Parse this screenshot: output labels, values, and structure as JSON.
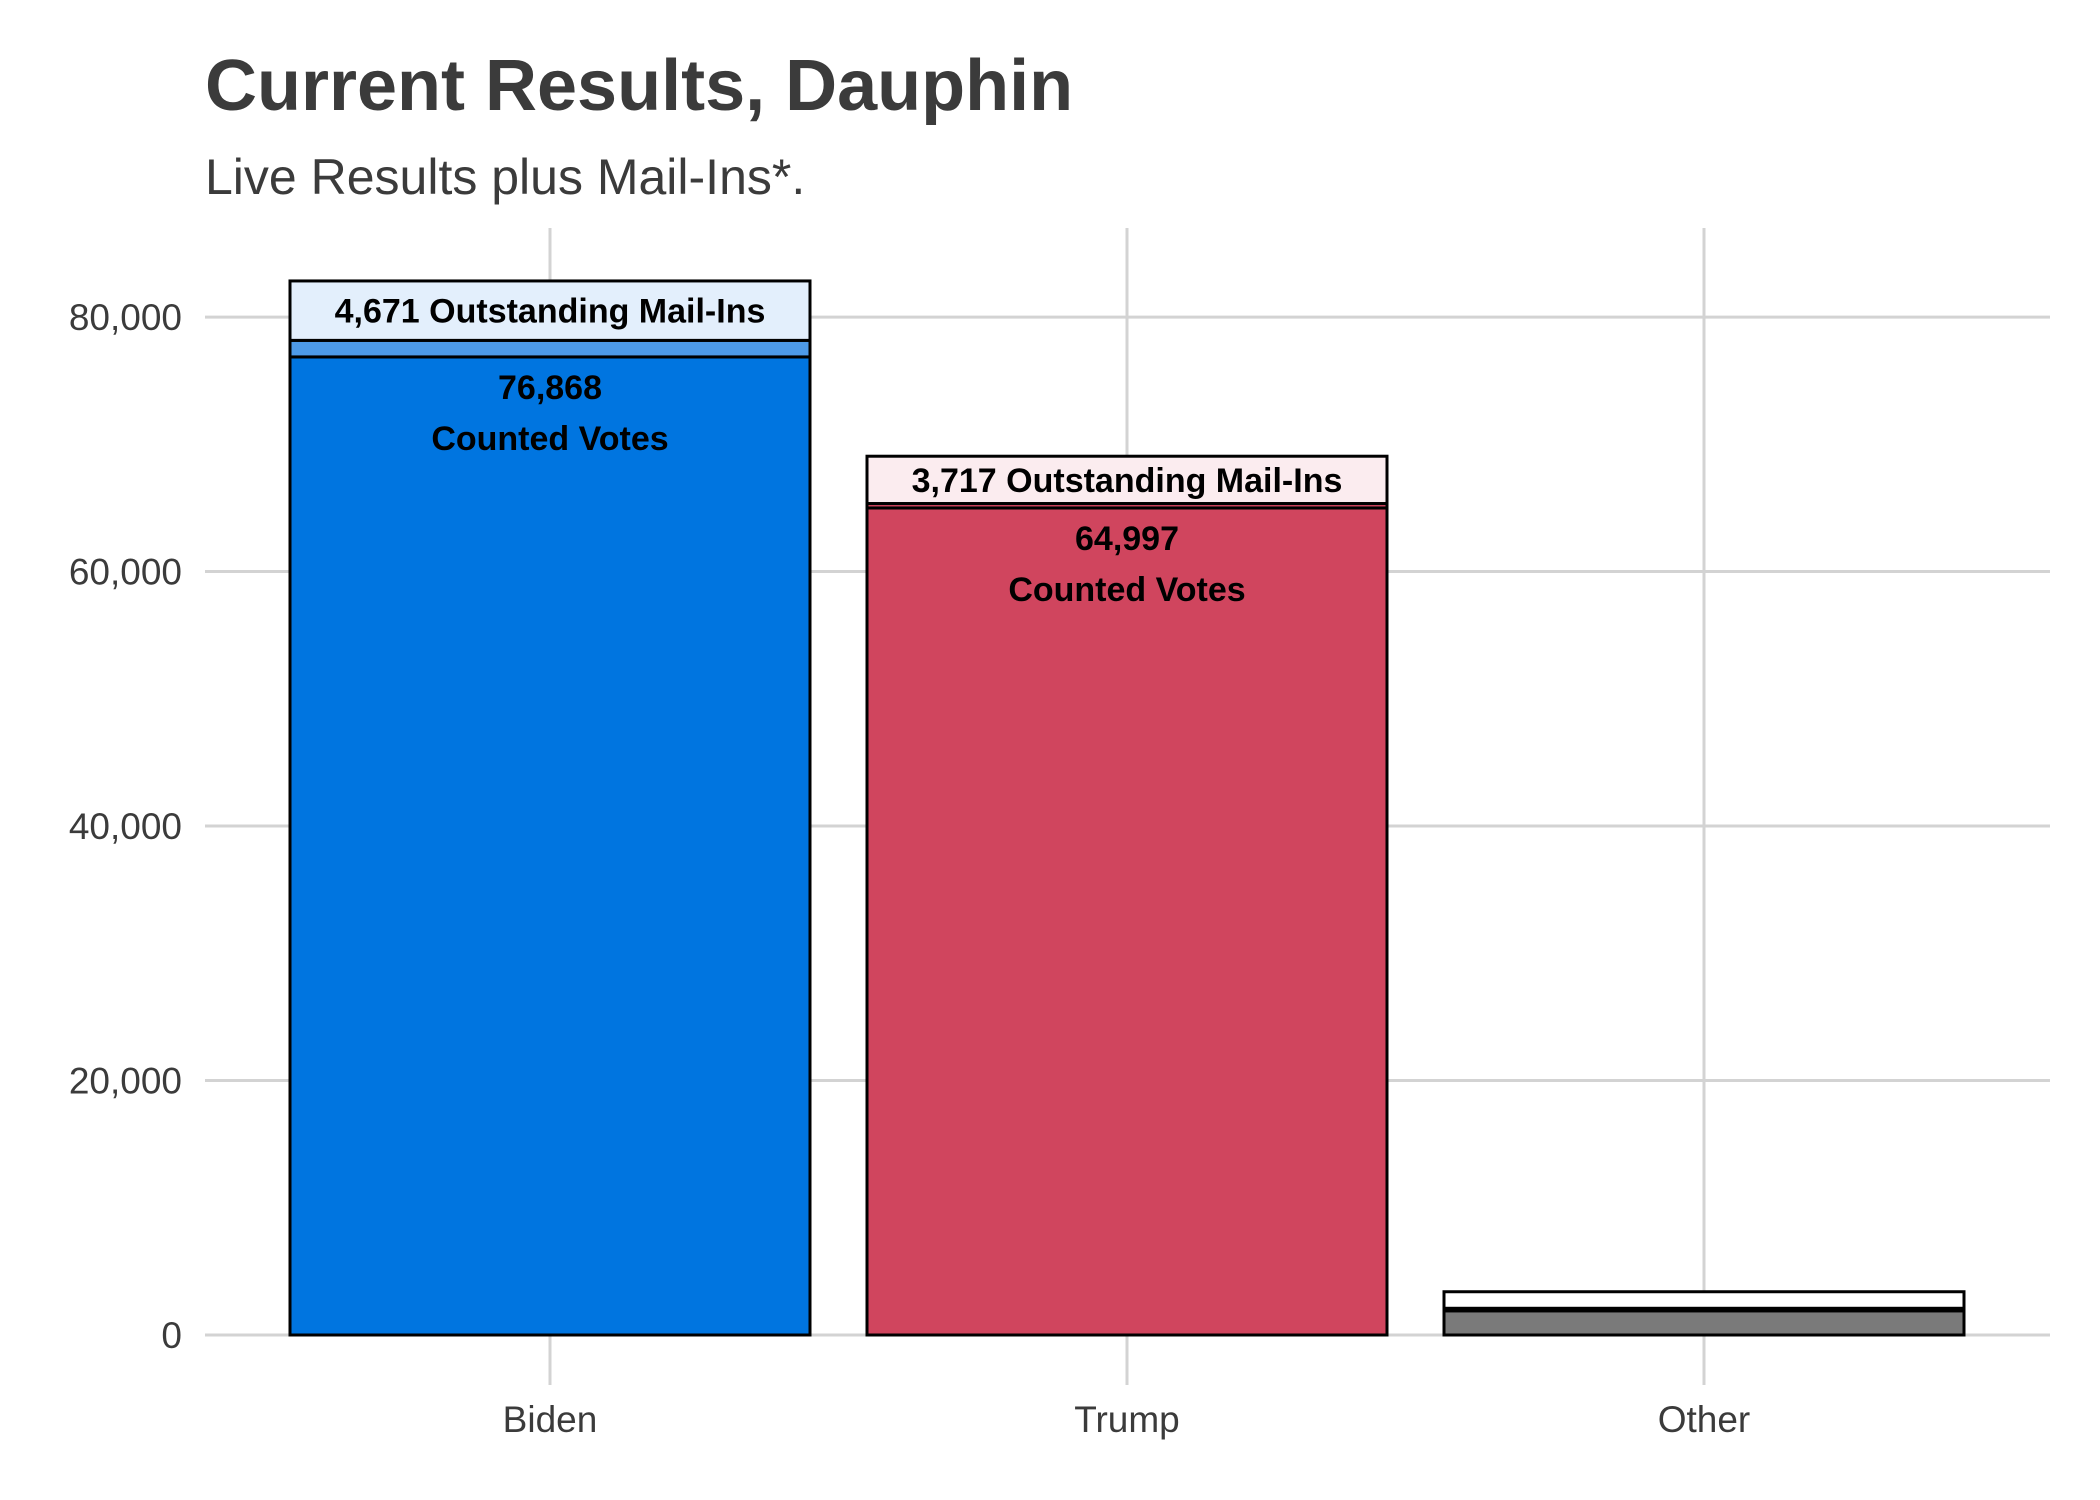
{
  "chart_data": {
    "type": "bar",
    "stacked": true,
    "title": "Current Results, Dauphin",
    "subtitle": "Live Results plus Mail-Ins*.",
    "xlabel": "",
    "ylabel": "",
    "categories": [
      "Biden",
      "Trump",
      "Other"
    ],
    "series": [
      {
        "key": "counted",
        "values": [
          76868,
          64997,
          1900
        ]
      },
      {
        "key": "extra",
        "values": [
          1300,
          350,
          200
        ]
      },
      {
        "key": "outstanding",
        "values": [
          4671,
          3717,
          1300
        ]
      }
    ],
    "colors": {
      "counted": [
        "#0075e0",
        "#d0455e",
        "#7a7a7a"
      ],
      "extra": [
        "#4d9ae8",
        "#d0455e",
        "#7a7a7a"
      ],
      "outstanding": [
        "#e3effc",
        "#fbecef",
        "#ffffff"
      ],
      "outline": "#000000",
      "grid": "#d3d3d3"
    },
    "counted_labels": [
      "76,868",
      "64,997",
      ""
    ],
    "counted_caption": "Counted Votes",
    "outstanding_labels": [
      "4,671 Outstanding Mail-Ins",
      "3,717 Outstanding Mail-Ins",
      ""
    ],
    "ylim": [
      0,
      87000
    ],
    "yticks": [
      0,
      20000,
      40000,
      60000,
      80000
    ],
    "ytick_labels": [
      "0",
      "20,000",
      "40,000",
      "60,000",
      "80,000"
    ],
    "grid": true,
    "legend": "none"
  }
}
